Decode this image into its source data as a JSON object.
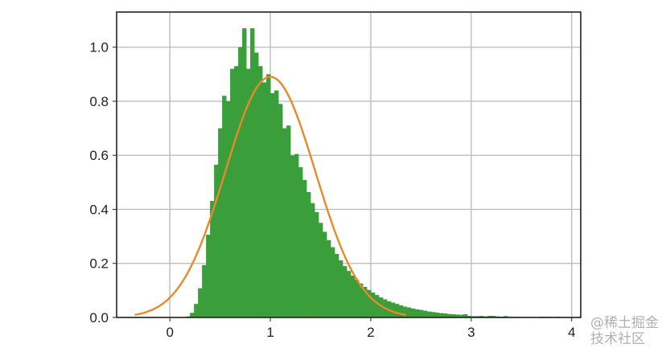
{
  "chart_data": {
    "type": "bar",
    "title": "",
    "xlabel": "",
    "ylabel": "",
    "xlim": [
      -0.53,
      4.09
    ],
    "ylim": [
      0,
      1.13
    ],
    "grid": true,
    "xticks": [
      "0",
      "1",
      "2",
      "3",
      "4"
    ],
    "yticks": [
      "0.0",
      "0.2",
      "0.4",
      "0.6",
      "0.8",
      "1.0"
    ],
    "histogram": {
      "bin_start": 0.12,
      "bin_width": 0.04,
      "color": "#3a9f3a",
      "values": [
        0.001,
        0.004,
        0.017,
        0.05,
        0.108,
        0.194,
        0.306,
        0.431,
        0.565,
        0.7,
        0.82,
        0.8,
        0.92,
        0.93,
        1.0,
        1.07,
        0.92,
        1.07,
        0.98,
        0.93,
        0.87,
        0.9,
        0.83,
        0.84,
        0.79,
        0.7,
        0.71,
        0.6,
        0.605,
        0.556,
        0.509,
        0.464,
        0.423,
        0.39,
        0.35,
        0.317,
        0.286,
        0.26,
        0.235,
        0.211,
        0.19,
        0.172,
        0.155,
        0.14,
        0.126,
        0.113,
        0.102,
        0.092,
        0.083,
        0.074,
        0.067,
        0.06,
        0.055,
        0.05,
        0.045,
        0.04,
        0.037,
        0.033,
        0.03,
        0.028,
        0.025,
        0.022,
        0.02,
        0.018,
        0.016,
        0.015,
        0.013,
        0.012,
        0.011,
        0.01,
        0.012,
        0.006,
        0.005,
        0.005,
        0.006,
        0.004,
        0.006,
        0.006,
        0.004,
        0.003,
        0.005,
        0.003,
        0.002,
        0.003,
        0.002,
        0.002,
        0.002,
        0.001,
        0.001,
        0.003,
        0.002,
        0.003,
        0.002,
        0.003,
        0.001,
        0.001,
        0.001
      ]
    },
    "normal_curve": {
      "type": "line",
      "mean": 1.0,
      "std": 0.448,
      "x_range": [
        -0.35,
        2.35
      ],
      "color": "#e8892a"
    }
  },
  "watermark": "@稀土掘金技术社区"
}
